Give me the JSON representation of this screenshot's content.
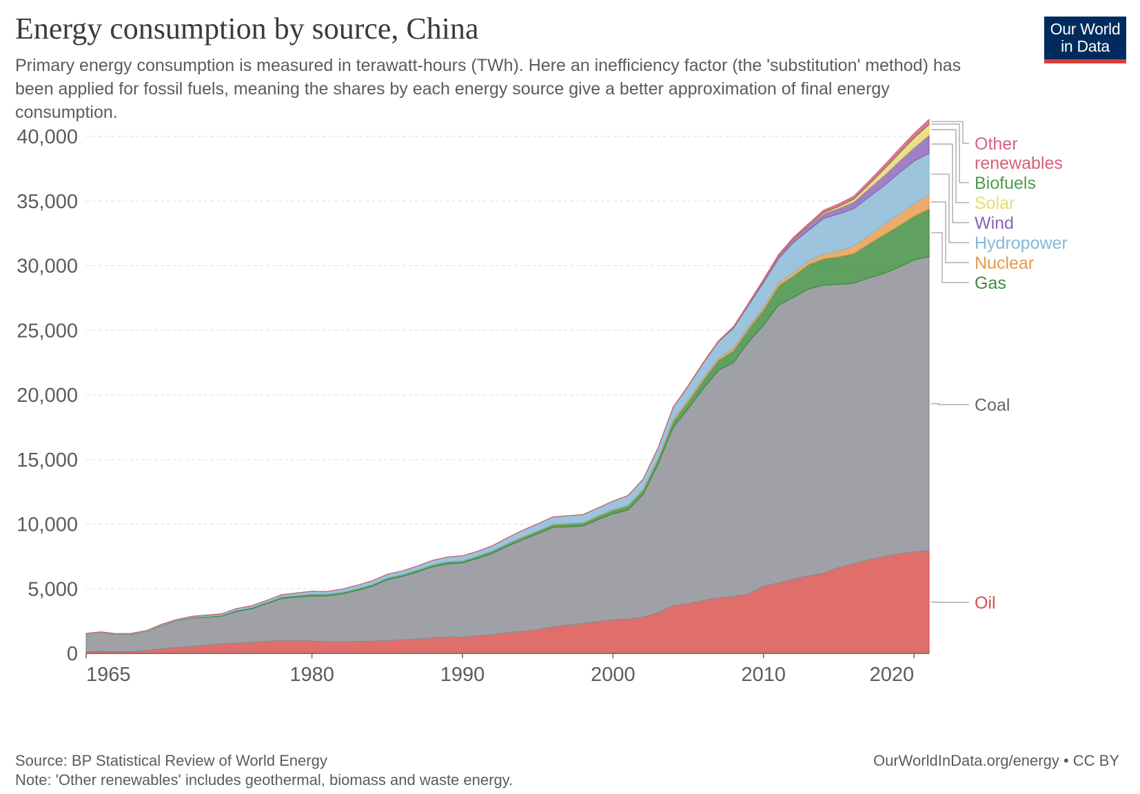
{
  "header": {
    "title": "Energy consumption by source, China",
    "subtitle": "Primary energy consumption is measured in terawatt-hours (TWh). Here an inefficiency factor (the 'substitution' method) has been applied for fossil fuels, meaning the shares by each energy source give a better approximation of final energy consumption.",
    "logo_line1": "Our World",
    "logo_line2": "in Data"
  },
  "footer": {
    "source": "Source: BP Statistical Review of World Energy",
    "note": "Note: 'Other renewables' includes geothermal, biomass and waste energy.",
    "link": "OurWorldInData.org/energy • CC BY"
  },
  "colors": {
    "background": "#ffffff",
    "grid": "#dddddd",
    "axis": "#666666",
    "oil": "#d94f4a",
    "coal": "#8a8c94",
    "gas": "#3d8b3d",
    "nuclear": "#e69a4c",
    "hydropower": "#86b7d6",
    "wind": "#8a64b4",
    "solar": "#e8dc6a",
    "biofuels": "#4e9a4e",
    "other_renewables": "#d6607a"
  },
  "chart_data": {
    "type": "area",
    "stacked": true,
    "title": "Energy consumption by source, China",
    "xlabel": "",
    "ylabel": "",
    "xlim": [
      1965,
      2021
    ],
    "ylim": [
      0,
      40000
    ],
    "x_ticks": [
      1965,
      1980,
      1990,
      2000,
      2010,
      2020
    ],
    "y_ticks": [
      0,
      5000,
      10000,
      15000,
      20000,
      25000,
      30000,
      35000,
      40000
    ],
    "y_tick_labels": [
      "0",
      "5,000",
      "10,000",
      "15,000",
      "20,000",
      "25,000",
      "30,000",
      "35,000",
      "40,000"
    ],
    "grid": true,
    "legend_placement": "right",
    "x": [
      1965,
      1966,
      1967,
      1968,
      1969,
      1970,
      1971,
      1972,
      1973,
      1974,
      1975,
      1976,
      1977,
      1978,
      1979,
      1980,
      1981,
      1982,
      1983,
      1984,
      1985,
      1986,
      1987,
      1988,
      1989,
      1990,
      1991,
      1992,
      1993,
      1994,
      1995,
      1996,
      1997,
      1998,
      1999,
      2000,
      2001,
      2002,
      2003,
      2004,
      2005,
      2006,
      2007,
      2008,
      2009,
      2010,
      2011,
      2012,
      2013,
      2014,
      2015,
      2016,
      2017,
      2018,
      2019,
      2020,
      2021
    ],
    "series": [
      {
        "name": "Oil",
        "color_key": "oil",
        "values": [
          150,
          160,
          140,
          150,
          230,
          350,
          460,
          530,
          650,
          730,
          800,
          850,
          950,
          1000,
          1000,
          950,
          900,
          900,
          920,
          950,
          1000,
          1050,
          1100,
          1200,
          1280,
          1250,
          1350,
          1450,
          1600,
          1700,
          1850,
          2050,
          2200,
          2300,
          2450,
          2600,
          2650,
          2800,
          3150,
          3700,
          3850,
          4100,
          4300,
          4400,
          4600,
          5200,
          5450,
          5750,
          6000,
          6200,
          6650,
          6950,
          7250,
          7500,
          7700,
          7850,
          7950
        ]
      },
      {
        "name": "Coal",
        "color_key": "coal",
        "values": [
          1350,
          1450,
          1330,
          1330,
          1450,
          1800,
          2050,
          2200,
          2150,
          2150,
          2450,
          2600,
          2900,
          3250,
          3350,
          3500,
          3550,
          3700,
          3950,
          4250,
          4700,
          4900,
          5200,
          5500,
          5650,
          5750,
          6000,
          6300,
          6700,
          7100,
          7400,
          7700,
          7600,
          7550,
          7900,
          8200,
          8450,
          9500,
          11500,
          13800,
          15100,
          16400,
          17600,
          18100,
          19500,
          20200,
          21500,
          21800,
          22200,
          22300,
          21900,
          21700,
          21800,
          21900,
          22200,
          22600,
          22750
        ]
      },
      {
        "name": "Gas",
        "color_key": "gas",
        "values": [
          20,
          22,
          22,
          24,
          28,
          32,
          40,
          50,
          60,
          70,
          90,
          100,
          110,
          130,
          140,
          150,
          140,
          140,
          140,
          140,
          140,
          150,
          160,
          160,
          170,
          170,
          180,
          190,
          200,
          200,
          210,
          220,
          230,
          240,
          260,
          300,
          330,
          350,
          400,
          470,
          550,
          660,
          800,
          930,
          1000,
          1200,
          1500,
          1680,
          1900,
          2050,
          2150,
          2300,
          2650,
          3000,
          3200,
          3400,
          3700
        ]
      },
      {
        "name": "Nuclear",
        "color_key": "nuclear",
        "values": [
          0,
          0,
          0,
          0,
          0,
          0,
          0,
          0,
          0,
          0,
          0,
          0,
          0,
          0,
          0,
          0,
          0,
          0,
          0,
          0,
          0,
          0,
          0,
          0,
          0,
          0,
          0,
          0,
          5,
          37,
          34,
          36,
          38,
          37,
          39,
          44,
          47,
          66,
          115,
          134,
          142,
          147,
          166,
          181,
          187,
          198,
          232,
          260,
          297,
          354,
          455,
          568,
          660,
          780,
          905,
          955,
          1070
        ]
      },
      {
        "name": "Hydropower",
        "color_key": "hydropower",
        "values": [
          30,
          30,
          30,
          40,
          50,
          60,
          70,
          80,
          100,
          110,
          130,
          130,
          140,
          160,
          180,
          200,
          200,
          230,
          260,
          270,
          280,
          280,
          300,
          330,
          350,
          380,
          370,
          390,
          450,
          490,
          530,
          550,
          580,
          610,
          600,
          640,
          730,
          760,
          740,
          930,
          1050,
          1150,
          1230,
          1550,
          1630,
          1900,
          1850,
          2300,
          2350,
          2750,
          2850,
          2900,
          2950,
          3000,
          3170,
          3280,
          3230
        ]
      },
      {
        "name": "Wind",
        "color_key": "wind",
        "values": [
          0,
          0,
          0,
          0,
          0,
          0,
          0,
          0,
          0,
          0,
          0,
          0,
          0,
          0,
          0,
          0,
          0,
          0,
          0,
          0,
          0,
          0,
          0,
          0,
          0,
          0,
          0,
          0,
          0,
          0,
          0,
          0,
          0,
          0,
          1,
          2,
          3,
          4,
          5,
          6,
          8,
          10,
          20,
          40,
          80,
          140,
          200,
          260,
          330,
          400,
          460,
          550,
          680,
          820,
          920,
          1080,
          1430
        ]
      },
      {
        "name": "Solar",
        "color_key": "solar",
        "values": [
          0,
          0,
          0,
          0,
          0,
          0,
          0,
          0,
          0,
          0,
          0,
          0,
          0,
          0,
          0,
          0,
          0,
          0,
          0,
          0,
          0,
          0,
          0,
          0,
          0,
          0,
          0,
          0,
          0,
          0,
          0,
          0,
          0,
          0,
          0,
          0,
          0,
          0,
          0,
          0,
          0,
          0,
          0,
          1,
          1,
          2,
          6,
          10,
          20,
          60,
          110,
          180,
          280,
          450,
          580,
          710,
          800
        ]
      },
      {
        "name": "Biofuels",
        "color_key": "biofuels",
        "values": [
          0,
          0,
          0,
          0,
          0,
          0,
          0,
          0,
          0,
          0,
          0,
          0,
          0,
          0,
          0,
          0,
          0,
          0,
          0,
          0,
          0,
          0,
          0,
          0,
          0,
          0,
          0,
          0,
          0,
          0,
          0,
          0,
          0,
          0,
          0,
          0,
          1,
          2,
          5,
          10,
          20,
          25,
          30,
          35,
          40,
          40,
          40,
          45,
          45,
          45,
          50,
          50,
          50,
          55,
          60,
          60,
          60
        ]
      },
      {
        "name": "Other renewables",
        "color_key": "other_renewables",
        "values": [
          0,
          0,
          0,
          0,
          0,
          0,
          0,
          0,
          0,
          0,
          0,
          0,
          0,
          0,
          0,
          0,
          0,
          0,
          0,
          0,
          0,
          0,
          0,
          0,
          0,
          0,
          0,
          0,
          0,
          0,
          0,
          0,
          0,
          0,
          1,
          2,
          3,
          4,
          5,
          10,
          20,
          30,
          40,
          50,
          60,
          70,
          80,
          100,
          120,
          140,
          160,
          180,
          220,
          250,
          280,
          300,
          330
        ]
      }
    ],
    "legend_entries": [
      {
        "label_lines": [
          "Other",
          "renewables"
        ],
        "color_key": "other_renewables"
      },
      {
        "label_lines": [
          "Biofuels"
        ],
        "color_key": "biofuels"
      },
      {
        "label_lines": [
          "Solar"
        ],
        "color_key": "solar"
      },
      {
        "label_lines": [
          "Wind"
        ],
        "color_key": "wind"
      },
      {
        "label_lines": [
          "Hydropower"
        ],
        "color_key": "hydropower"
      },
      {
        "label_lines": [
          "Nuclear"
        ],
        "color_key": "nuclear"
      },
      {
        "label_lines": [
          "Gas"
        ],
        "color_key": "gas"
      },
      {
        "label_lines": [
          "Coal"
        ],
        "color_key": "axis"
      },
      {
        "label_lines": [
          "Oil"
        ],
        "color_key": "oil"
      }
    ]
  }
}
